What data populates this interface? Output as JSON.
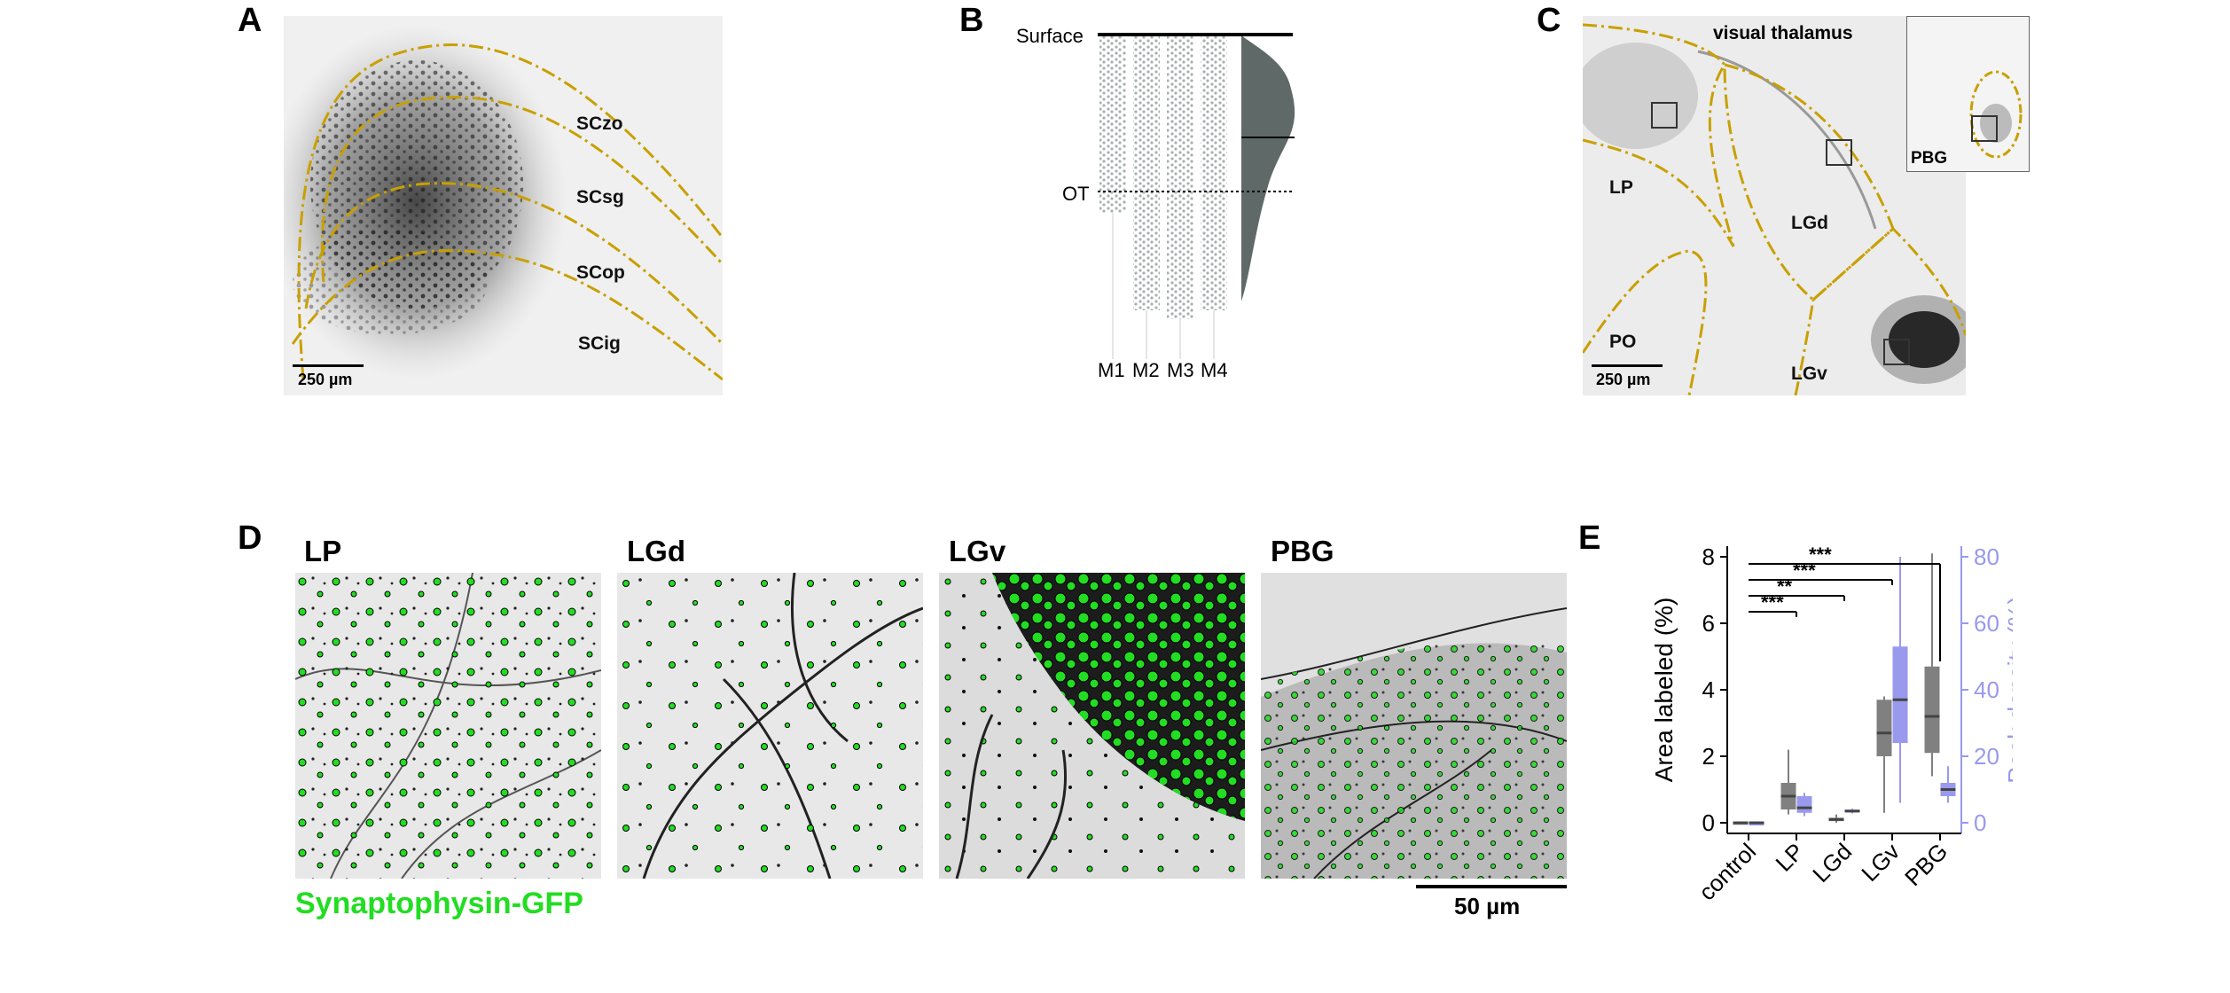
{
  "panels": {
    "A": {
      "letter": "A",
      "layers": [
        "SCzo",
        "SCsg",
        "SCop",
        "SCig"
      ],
      "scalebar": "250 µm"
    },
    "B": {
      "letter": "B",
      "surface_label": "Surface",
      "ot_label": "OT",
      "mice": [
        "M1",
        "M2",
        "M3",
        "M4"
      ]
    },
    "C": {
      "letter": "C",
      "regions": [
        "visual thalamus",
        "LP",
        "LGd",
        "PO",
        "LGv"
      ],
      "inset_label": "PBG",
      "scalebar": "250 µm"
    },
    "D": {
      "letter": "D",
      "titles": [
        "LP",
        "LGd",
        "LGv",
        "PBG"
      ],
      "marker_label": "Synaptophysin-GFP",
      "marker_color": "#22dd22",
      "scalebar": "50 µm"
    },
    "E": {
      "letter": "E"
    }
  },
  "chart_data": {
    "type": "box",
    "categories": [
      "control",
      "LP",
      "LGd",
      "LGv",
      "PBG"
    ],
    "ylabel_left": "Area labeled (%)",
    "ylabel_right": "Peak density (%)",
    "ylim_left": [
      0,
      8
    ],
    "ylim_right": [
      0,
      80
    ],
    "yticks_left": [
      "0",
      "2",
      "4",
      "6",
      "8"
    ],
    "yticks_right": [
      "0",
      "20",
      "40",
      "60",
      "80"
    ],
    "colors": {
      "area": "#808080",
      "density": "#9999ee"
    },
    "series": [
      {
        "name": "Area labeled (%)",
        "axis": "left",
        "boxes": [
          {
            "whislo": 0.0,
            "q1": 0.0,
            "med": 0.0,
            "q3": 0.02,
            "whishi": 0.02
          },
          {
            "whislo": 0.25,
            "q1": 0.4,
            "med": 0.8,
            "q3": 1.2,
            "whishi": 2.2
          },
          {
            "whislo": 0.0,
            "q1": 0.05,
            "med": 0.1,
            "q3": 0.15,
            "whishi": 0.25
          },
          {
            "whislo": 0.3,
            "q1": 2.0,
            "med": 2.7,
            "q3": 3.7,
            "whishi": 3.8
          },
          {
            "whislo": 1.4,
            "q1": 2.1,
            "med": 3.2,
            "q3": 4.7,
            "whishi": 8.1
          }
        ]
      },
      {
        "name": "Peak density (%)",
        "axis": "right",
        "boxes": [
          {
            "whislo": 0,
            "q1": 0,
            "med": 0,
            "q3": 0,
            "whishi": 0
          },
          {
            "whislo": 2,
            "q1": 3,
            "med": 4.5,
            "q3": 8,
            "whishi": 9
          },
          {
            "whislo": 2.8,
            "q1": 3.2,
            "med": 3.5,
            "q3": 4,
            "whishi": 4.3
          },
          {
            "whislo": 6,
            "q1": 24,
            "med": 37,
            "q3": 53,
            "whishi": 80
          },
          {
            "whislo": 6,
            "q1": 8,
            "med": 10,
            "q3": 12,
            "whishi": 17
          }
        ]
      }
    ],
    "significance": [
      {
        "from": "control",
        "to": "LP",
        "label": "***"
      },
      {
        "from": "control",
        "to": "LGd",
        "label": "**"
      },
      {
        "from": "control",
        "to": "LGv",
        "label": "***"
      },
      {
        "from": "control",
        "to": "PBG",
        "label": "***"
      }
    ]
  }
}
